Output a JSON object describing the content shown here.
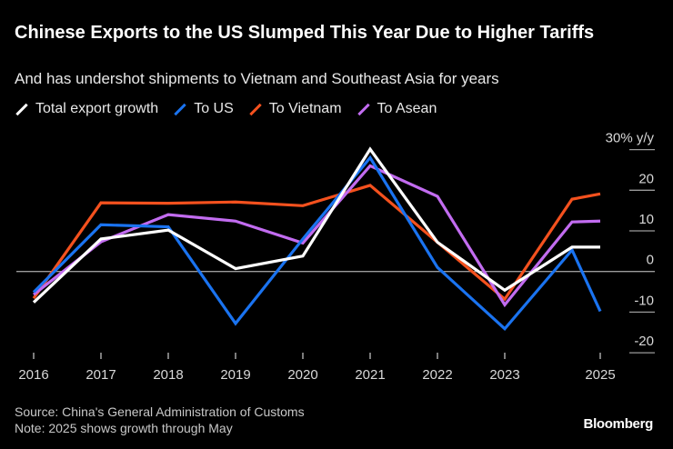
{
  "header": {
    "title": "Chinese Exports to the US Slumped This Year Due to Higher Tariffs",
    "subtitle": "And has undershot shipments to Vietnam and Southeast Asia for years"
  },
  "chart_data": {
    "type": "line",
    "title": "Chinese Exports to the US Slumped This Year Due to Higher Tariffs",
    "subtitle": "And has undershot shipments to Vietnam and Southeast Asia for years",
    "unit_label": "30% y/y",
    "x": [
      "2016",
      "2017",
      "2018",
      "2019",
      "2020",
      "2021",
      "2022",
      "2023",
      "2024",
      "2025"
    ],
    "x_tick_labels": [
      "2016",
      "2017",
      "2018",
      "2019",
      "2020",
      "2021",
      "2022",
      "2023",
      "2025"
    ],
    "y_ticks": [
      30,
      20,
      10,
      0,
      -10,
      -20
    ],
    "y_tick_labels": [
      "30% y/y",
      "20",
      "10",
      "0",
      "-10",
      "-20"
    ],
    "ylim": [
      -20,
      30
    ],
    "y_axis_side": "right",
    "grid": false,
    "legend_placement": "top-left",
    "series": [
      {
        "name": "Total export growth",
        "color": "#ffffff",
        "values": [
          -7.6,
          8.0,
          10.2,
          0.7,
          3.8,
          30.1,
          7.2,
          -4.6,
          6.0,
          6.0
        ]
      },
      {
        "name": "To US",
        "color": "#1a73f0",
        "values": [
          -5.1,
          11.5,
          11.0,
          -12.8,
          8.0,
          28.0,
          1.0,
          -14.1,
          5.3,
          -9.8
        ]
      },
      {
        "name": "To Vietnam",
        "color": "#f4511e",
        "values": [
          -6.6,
          16.9,
          16.8,
          17.1,
          16.2,
          21.2,
          7.2,
          -6.8,
          17.8,
          19.1
        ]
      },
      {
        "name": "To Asean",
        "color": "#c26cf0",
        "values": [
          -5.7,
          7.3,
          14.0,
          12.4,
          7.0,
          26.0,
          18.5,
          -8.2,
          12.2,
          12.4
        ]
      }
    ]
  },
  "footer": {
    "source": "Source: China's General Administration of Customs",
    "note": "Note: 2025 shows growth through May",
    "logo": "Bloomberg"
  }
}
